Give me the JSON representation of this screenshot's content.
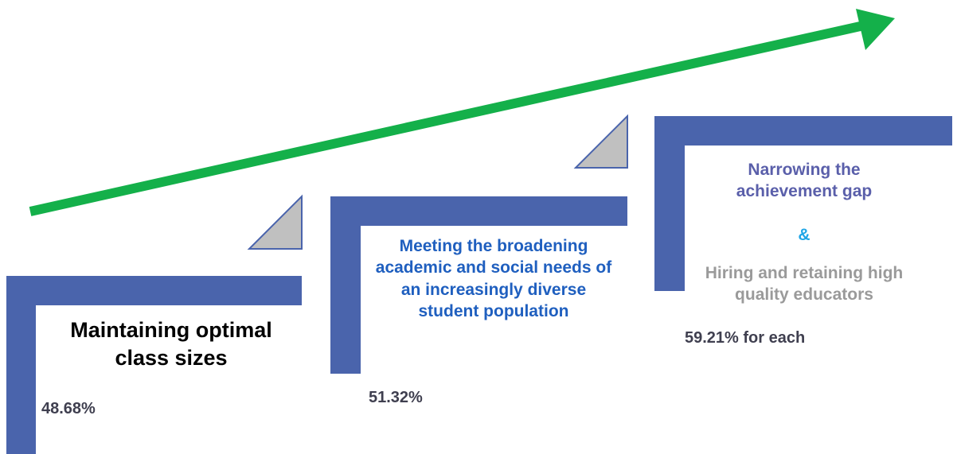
{
  "colors": {
    "step_bar": "#4a64ac",
    "arrow": "#14b04a",
    "triangle_fill": "#c0c0c0",
    "triangle_stroke": "#4a64ac",
    "step1_title": "#000000",
    "step2_title": "#1f5fbf",
    "step3_title_a": "#5a5faa",
    "step3_amp": "#1ea5e6",
    "step3_title_b": "#9a9a9a",
    "value_text": "#3f3f4f"
  },
  "steps": [
    {
      "title": "Maintaining optimal class sizes",
      "value": "48.68%"
    },
    {
      "title": "Meeting the broadening academic and social needs of an increasingly diverse student population",
      "value": "51.32%"
    },
    {
      "title_a": "Narrowing the achievement gap",
      "connector": "&",
      "title_b": "Hiring and retaining high quality educators",
      "value": "59.21% for each"
    }
  ]
}
